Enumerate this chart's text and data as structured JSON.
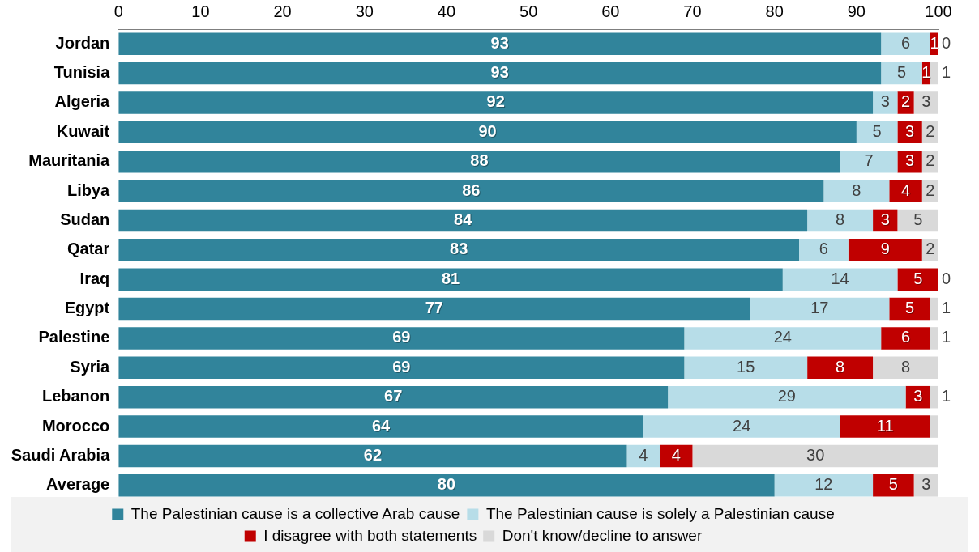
{
  "chart_data": {
    "type": "bar",
    "orientation": "horizontal",
    "stacked": true,
    "categories": [
      "Jordan",
      "Tunisia",
      "Algeria",
      "Kuwait",
      "Mauritania",
      "Libya",
      "Sudan",
      "Qatar",
      "Iraq",
      "Egypt",
      "Palestine",
      "Syria",
      "Lebanon",
      "Morocco",
      "Saudi Arabia",
      "Average"
    ],
    "series": [
      {
        "name": "The Palestinian cause is a collective Arab cause",
        "color": "#31849b",
        "values": [
          93,
          93,
          92,
          90,
          88,
          86,
          84,
          83,
          81,
          77,
          69,
          69,
          67,
          64,
          62,
          80
        ],
        "value_labels": [
          "93",
          "93",
          "92",
          "90",
          "88",
          "86",
          "84",
          "83",
          "81",
          "77",
          "69",
          "69",
          "67",
          "64",
          "62",
          "80"
        ]
      },
      {
        "name": "The Palestinian cause is solely a Palestinian cause",
        "color": "#b7dde8",
        "values": [
          6,
          5,
          3,
          5,
          7,
          8,
          8,
          6,
          14,
          17,
          24,
          15,
          29,
          24,
          4,
          12
        ],
        "value_labels": [
          "6",
          "5",
          "3",
          "5",
          "7",
          "8",
          "8",
          "6",
          "14",
          "17",
          "24",
          "15",
          "29",
          "24",
          "4",
          "12"
        ]
      },
      {
        "name": "I disagree with both statements",
        "color": "#c00000",
        "values": [
          1,
          1,
          2,
          3,
          3,
          4,
          3,
          9,
          5,
          5,
          6,
          8,
          3,
          11,
          4,
          5
        ],
        "value_labels": [
          "1",
          "1",
          "2",
          "3",
          "3",
          "4",
          "3",
          "9",
          "5",
          "5",
          "6",
          "8",
          "3",
          "11",
          "4",
          "5"
        ]
      },
      {
        "name": "Don't know/decline to answer",
        "color": "#d9d9d9",
        "values": [
          0,
          1,
          3,
          2,
          2,
          2,
          5,
          2,
          0,
          1,
          1,
          8,
          1,
          1,
          30,
          3
        ],
        "value_labels": [
          "0",
          "1",
          "3",
          "2",
          "2",
          "2",
          "5",
          "2",
          "0",
          "1",
          "1",
          "8",
          "1",
          null,
          "30",
          "3"
        ]
      }
    ],
    "xlim": [
      0,
      100
    ],
    "xticks": [
      0,
      10,
      20,
      30,
      40,
      50,
      60,
      70,
      80,
      90,
      100
    ],
    "grid": false,
    "legend": "bottom"
  }
}
